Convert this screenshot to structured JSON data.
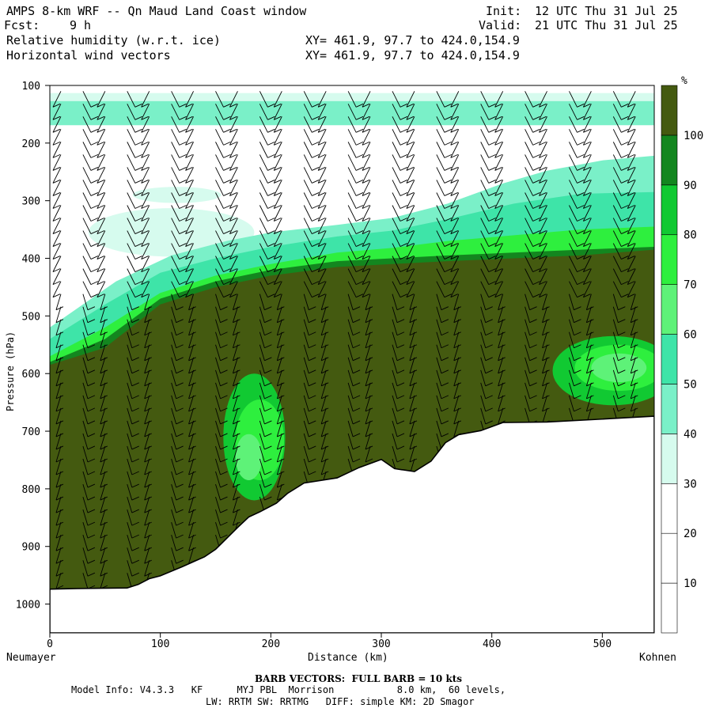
{
  "header": {
    "model_title": "AMPS 8-km WRF -- Qn Maud Land Coast window",
    "init_label": "Init:",
    "init_value": "12 UTC Thu 31 Jul 25",
    "fcst_label": "Fcst:",
    "fcst_value": "9 h",
    "valid_label": "Valid:",
    "valid_value": "21 UTC Thu 31 Jul 25",
    "field1": "Relative humidity (w.r.t. ice)",
    "field1_xy": "XY= 461.9, 97.7 to 424.0,154.9",
    "field2": "Horizontal wind vectors",
    "field2_xy": "XY= 461.9, 97.7 to 424.0,154.9"
  },
  "chart_data": {
    "type": "heatmap",
    "title": "Relative humidity (w.r.t. ice)",
    "xlabel": "Distance (km)",
    "ylabel": "Pressure (hPa)",
    "xlim": [
      0,
      547
    ],
    "ylim": [
      1050,
      100
    ],
    "x_ticks": [
      0,
      100,
      200,
      300,
      400,
      500
    ],
    "y_ticks": [
      100,
      200,
      300,
      400,
      500,
      600,
      700,
      800,
      900,
      1000
    ],
    "x_end_labels": {
      "left": "Neumayer",
      "right": "Kohnen"
    },
    "colorbar": {
      "unit": "%",
      "levels": [
        10,
        20,
        30,
        40,
        50,
        60,
        70,
        80,
        90,
        100
      ],
      "colors": [
        "#ffffff",
        "#ffffff",
        "#ffffff",
        "#d6fbee",
        "#7af0c8",
        "#3ee4a8",
        "#5ef278",
        "#2eef3e",
        "#11c932",
        "#13861f",
        "#445a10"
      ]
    },
    "terrain_hpa": [
      [
        0,
        974
      ],
      [
        25,
        973
      ],
      [
        70,
        972
      ],
      [
        75,
        969
      ],
      [
        80,
        966
      ],
      [
        90,
        956
      ],
      [
        100,
        951
      ],
      [
        120,
        935
      ],
      [
        140,
        918
      ],
      [
        150,
        905
      ],
      [
        160,
        886
      ],
      [
        170,
        867
      ],
      [
        180,
        849
      ],
      [
        190,
        840
      ],
      [
        205,
        825
      ],
      [
        215,
        808
      ],
      [
        230,
        790
      ],
      [
        260,
        781
      ],
      [
        280,
        763
      ],
      [
        300,
        749
      ],
      [
        312,
        765
      ],
      [
        330,
        770
      ],
      [
        345,
        752
      ],
      [
        358,
        720
      ],
      [
        370,
        706
      ],
      [
        390,
        699
      ],
      [
        410,
        685
      ],
      [
        450,
        684
      ],
      [
        500,
        679
      ],
      [
        547,
        674
      ]
    ],
    "rh_bands": [
      {
        "level": 40,
        "top": [
          [
            0,
            520
          ],
          [
            60,
            440
          ],
          [
            110,
            395
          ],
          [
            160,
            370
          ],
          [
            200,
            355
          ],
          [
            260,
            342
          ],
          [
            310,
            330
          ],
          [
            360,
            305
          ],
          [
            410,
            270
          ],
          [
            450,
            248
          ],
          [
            500,
            230
          ],
          [
            547,
            222
          ]
        ]
      },
      {
        "level": 50,
        "top": [
          [
            0,
            540
          ],
          [
            50,
            480
          ],
          [
            100,
            425
          ],
          [
            150,
            400
          ],
          [
            200,
            380
          ],
          [
            260,
            362
          ],
          [
            310,
            352
          ],
          [
            360,
            332
          ],
          [
            420,
            305
          ],
          [
            480,
            288
          ],
          [
            547,
            285
          ]
        ]
      },
      {
        "level": 70,
        "top": [
          [
            0,
            570
          ],
          [
            50,
            520
          ],
          [
            100,
            460
          ],
          [
            150,
            430
          ],
          [
            200,
            410
          ],
          [
            260,
            390
          ],
          [
            310,
            382
          ],
          [
            360,
            370
          ],
          [
            420,
            360
          ],
          [
            480,
            350
          ],
          [
            547,
            345
          ]
        ]
      },
      {
        "level": 90,
        "top": [
          [
            0,
            580
          ],
          [
            50,
            540
          ],
          [
            100,
            470
          ],
          [
            150,
            440
          ],
          [
            200,
            420
          ],
          [
            260,
            405
          ],
          [
            310,
            400
          ],
          [
            360,
            395
          ],
          [
            420,
            390
          ],
          [
            480,
            385
          ],
          [
            547,
            380
          ]
        ]
      },
      {
        "level": 100,
        "top": [
          [
            0,
            585
          ],
          [
            50,
            555
          ],
          [
            100,
            480
          ],
          [
            150,
            450
          ],
          [
            200,
            430
          ],
          [
            260,
            415
          ],
          [
            310,
            410
          ],
          [
            360,
            405
          ],
          [
            420,
            400
          ],
          [
            480,
            395
          ],
          [
            547,
            385
          ]
        ]
      }
    ],
    "rh_patches": [
      {
        "level": 30,
        "center": [
          110,
          355
        ],
        "rx": 75,
        "ry": 42
      },
      {
        "level": 30,
        "center": [
          115,
          290
        ],
        "rx": 40,
        "ry": 14
      },
      {
        "level": 40,
        "center": [
          250,
          372
        ],
        "rx": 25,
        "ry": 20
      },
      {
        "level": 80,
        "center": [
          185,
          710
        ],
        "rx": 28,
        "ry": 110
      },
      {
        "level": 70,
        "center": [
          190,
          715
        ],
        "rx": 22,
        "ry": 70
      },
      {
        "level": 60,
        "center": [
          180,
          745
        ],
        "rx": 12,
        "ry": 40
      },
      {
        "level": 80,
        "center": [
          510,
          595
        ],
        "rx": 55,
        "ry": 60
      },
      {
        "level": 70,
        "center": [
          515,
          590
        ],
        "rx": 40,
        "ry": 40
      },
      {
        "level": 60,
        "center": [
          515,
          590
        ],
        "rx": 25,
        "ry": 25
      }
    ],
    "rh_upper_band": {
      "level": 40,
      "center_hpa": 148,
      "thickness_hpa": 42
    },
    "barb_columns_km": [
      10,
      30,
      50,
      70,
      90,
      110,
      130,
      150,
      170,
      190,
      210,
      230,
      250,
      270,
      290,
      310,
      330,
      350,
      370,
      390,
      410,
      430,
      450,
      470,
      490,
      510,
      530
    ]
  },
  "footer": {
    "barb_note": "BARB VECTORS:  FULL BARB = 10 kts",
    "model_info": "Model Info: V4.3.3   KF      MYJ PBL  Morrison           8.0 km,  60 levels,",
    "physics": "LW: RRTM SW: RRTMG   DIFF: simple KM: 2D Smagor"
  }
}
